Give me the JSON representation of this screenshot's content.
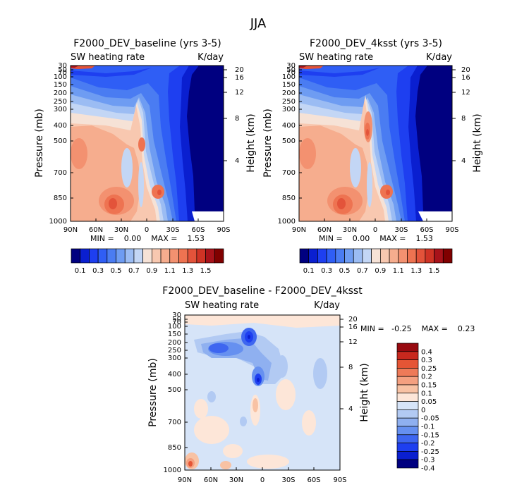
{
  "page_title": "JJA",
  "colors": {
    "basic": [
      "#000080",
      "#0a1fd0",
      "#1e3ff0",
      "#2f5ef5",
      "#4a7cf2",
      "#6e9cf2",
      "#9bbcf3",
      "#c3d6f5",
      "#f6e2d6",
      "#f8c8b0",
      "#f6ad8e",
      "#f39170",
      "#ee7351",
      "#e3533a",
      "#cf3325",
      "#a8121a",
      "#800000"
    ],
    "diff": [
      "#000080",
      "#0a1fd0",
      "#1e3ff0",
      "#3e66f0",
      "#6690f0",
      "#8fb0f0",
      "#b2caf3",
      "#d6e4f8",
      "#fde6d8",
      "#f8c2a4",
      "#f4a080",
      "#ee7a58",
      "#e55535",
      "#c8281e",
      "#980a10"
    ]
  },
  "chart_data": [
    {
      "id": "panel_baseline",
      "type": "heatmap",
      "title": "F2000_DEV_baseline (yrs 3-5)",
      "left_label": "SW heating rate",
      "right_label": "K/day",
      "ylabel": "Pressure (mb)",
      "y2label": "Height (km)",
      "x_ticks": [
        "90N",
        "60N",
        "30N",
        "0",
        "30S",
        "60S",
        "90S"
      ],
      "y_ticks": [
        "30",
        "50",
        "70",
        "100",
        "150",
        "200",
        "250",
        "300",
        "400",
        "500",
        "700",
        "850",
        "1000"
      ],
      "y_tick_values": [
        30,
        50,
        70,
        100,
        150,
        200,
        250,
        300,
        400,
        500,
        700,
        850,
        1000
      ],
      "y2_ticks": [
        "20",
        "16",
        "12",
        "8",
        "4"
      ],
      "y2_tick_values": [
        20,
        16,
        12,
        8,
        4
      ],
      "xlim": [
        90,
        -90
      ],
      "ylim": [
        1000,
        30
      ],
      "stats_text": "MIN =    0.00    MAX =    1.53",
      "min": 0.0,
      "max": 1.53
    },
    {
      "id": "panel_4ksst",
      "type": "heatmap",
      "title": "F2000_DEV_4ksst (yrs 3-5)",
      "left_label": "SW heating rate",
      "right_label": "K/day",
      "ylabel": "Pressure (mb)",
      "y2label": "Height (km)",
      "x_ticks": [
        "90N",
        "60N",
        "30N",
        "0",
        "30S",
        "60S",
        "90S"
      ],
      "y_ticks": [
        "30",
        "50",
        "70",
        "100",
        "150",
        "200",
        "250",
        "300",
        "400",
        "500",
        "700",
        "850",
        "1000"
      ],
      "y_tick_values": [
        30,
        50,
        70,
        100,
        150,
        200,
        250,
        300,
        400,
        500,
        700,
        850,
        1000
      ],
      "y2_ticks": [
        "20",
        "16",
        "12",
        "8",
        "4"
      ],
      "y2_tick_values": [
        20,
        16,
        12,
        8,
        4
      ],
      "xlim": [
        90,
        -90
      ],
      "ylim": [
        1000,
        30
      ],
      "stats_text": "MIN =    0.00    MAX =    1.53",
      "min": 0.0,
      "max": 1.53
    },
    {
      "id": "panel_diff",
      "type": "heatmap",
      "title": "F2000_DEV_baseline - F2000_DEV_4ksst",
      "left_label": "SW heating rate",
      "right_label": "K/day",
      "ylabel": "Pressure (mb)",
      "y2label": "Height (km)",
      "x_ticks": [
        "90N",
        "60N",
        "30N",
        "0",
        "30S",
        "60S",
        "90S"
      ],
      "y_ticks": [
        "30",
        "50",
        "70",
        "100",
        "150",
        "200",
        "250",
        "300",
        "400",
        "500",
        "700",
        "850",
        "1000"
      ],
      "y_tick_values": [
        30,
        50,
        70,
        100,
        150,
        200,
        250,
        300,
        400,
        500,
        700,
        850,
        1000
      ],
      "y2_ticks": [
        "20",
        "16",
        "12",
        "8",
        "4"
      ],
      "y2_tick_values": [
        20,
        16,
        12,
        8,
        4
      ],
      "xlim": [
        90,
        -90
      ],
      "ylim": [
        1000,
        30
      ],
      "stats_text": "MIN =   -0.25    MAX =    0.23",
      "min": -0.25,
      "max": 0.23
    }
  ],
  "colorbar_basic": {
    "labels": [
      "0.1",
      "0.3",
      "0.5",
      "0.7",
      "0.9",
      "1.1",
      "1.3",
      "1.5"
    ]
  },
  "colorbar_diff": {
    "labels": [
      "0.4",
      "0.3",
      "0.25",
      "0.2",
      "0.15",
      "0.1",
      "0.05",
      "0",
      "-0.05",
      "-0.1",
      "-0.15",
      "-0.2",
      "-0.25",
      "-0.3",
      "-0.4"
    ]
  }
}
